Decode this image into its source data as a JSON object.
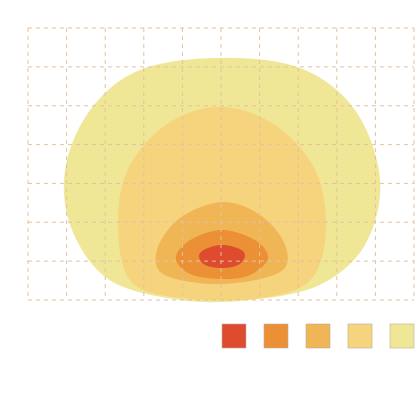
{
  "chart_data": {
    "type": "contour",
    "xlim": [
      0,
      10
    ],
    "ylim": [
      0,
      7
    ],
    "xticks": [
      0,
      1,
      2,
      3,
      4,
      5,
      6,
      7,
      8,
      9,
      10
    ],
    "yticks": [
      0,
      1,
      2,
      3,
      4,
      5,
      6,
      7
    ],
    "grid": true,
    "grid_color": "#e2c2a0",
    "legend": "bottom-right",
    "series": [
      {
        "color": "#efe795",
        "x": [
          4.97,
          7.05,
          8.47,
          9.12,
          8.73,
          7.56,
          5.75,
          3.94,
          2.12,
          1.14,
          0.96,
          1.61,
          2.9
        ],
        "y": [
          6.23,
          5.97,
          4.89,
          3.09,
          1.42,
          0.39,
          0,
          0,
          0.51,
          1.8,
          3.35,
          4.89,
          5.92
        ]
      },
      {
        "color": "#f6d37d",
        "x": [
          5.03,
          6.4,
          7.44,
          7.72,
          7.31,
          6.01,
          3.94,
          2.64,
          2.33,
          2.64,
          3.68
        ],
        "y": [
          4.97,
          4.5,
          3.35,
          1.8,
          0.51,
          0.05,
          0.05,
          0.51,
          2.06,
          3.47,
          4.58
        ]
      },
      {
        "color": "#f0b554",
        "x": [
          5.03,
          6.01,
          6.66,
          6.53,
          5.03,
          3.55,
          3.34,
          3.94
        ],
        "y": [
          2.52,
          2.19,
          1.42,
          0.72,
          0.41,
          0.64,
          1.29,
          2.11
        ]
      },
      {
        "color": "#ec9035",
        "x": [
          5.03,
          5.88,
          6.22,
          5.75,
          5.03,
          4.2,
          3.83,
          4.2
        ],
        "y": [
          1.8,
          1.54,
          1.08,
          0.64,
          0.54,
          0.67,
          1.08,
          1.54
        ]
      },
      {
        "color": "#de4b2e",
        "x": [
          5.03,
          5.49,
          5.62,
          5.44,
          5.03,
          4.59,
          4.43,
          4.59
        ],
        "y": [
          1.42,
          1.31,
          1.13,
          0.9,
          0.82,
          0.9,
          1.13,
          1.31
        ]
      }
    ]
  }
}
